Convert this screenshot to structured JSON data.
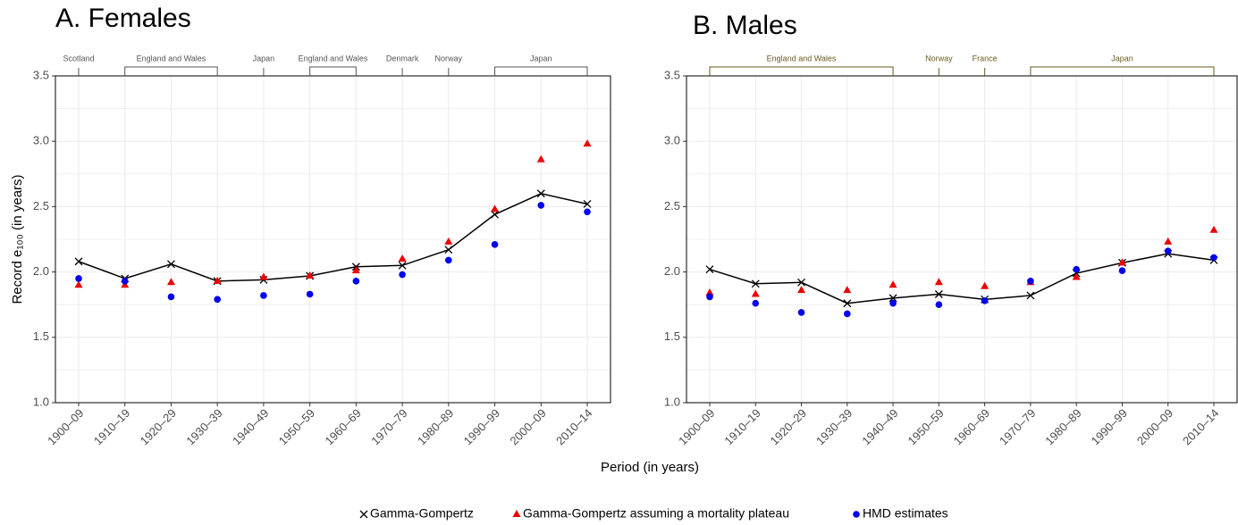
{
  "chart_data": [
    {
      "type": "line",
      "title": "A. Females",
      "y_label": "Record e₁₀₀ (in years)",
      "x_label": "Period (in years)",
      "categories": [
        "1900–09",
        "1910–19",
        "1920–29",
        "1930–39",
        "1940–49",
        "1950–59",
        "1960–69",
        "1970–79",
        "1980–89",
        "1990–99",
        "2000–09",
        "2010–14"
      ],
      "series": [
        {
          "name": "Gamma-Gompertz",
          "color": "#000000",
          "marker": "cross",
          "line": true,
          "values": [
            2.08,
            1.95,
            2.06,
            1.93,
            1.94,
            1.97,
            2.04,
            2.05,
            2.17,
            2.44,
            2.6,
            2.52
          ]
        },
        {
          "name": "Gamma-Gompertz assuming a mortality plateau",
          "color": "#ee0000",
          "marker": "triangle",
          "line": false,
          "values": [
            1.9,
            1.9,
            1.92,
            1.93,
            1.96,
            1.97,
            2.01,
            2.1,
            2.23,
            2.48,
            2.86,
            2.98
          ]
        },
        {
          "name": "HMD estimates",
          "color": "#0000ee",
          "marker": "circle",
          "line": false,
          "values": [
            1.95,
            1.93,
            1.81,
            1.79,
            1.82,
            1.83,
            1.93,
            1.98,
            2.09,
            2.21,
            2.51,
            2.46
          ]
        }
      ],
      "ylim": [
        1,
        3.5
      ],
      "yticks": [
        {
          "value": 1,
          "label": "1.0"
        },
        1.5,
        {
          "value": 2,
          "label": "2.0"
        },
        2.5,
        {
          "value": 3,
          "label": "3.0"
        },
        3.5
      ],
      "grid": true,
      "minor_grid": true,
      "annotation_color": "#555555",
      "annotations": [
        {
          "label": "Scotland",
          "from": "1900–09",
          "to": "1900–09"
        },
        {
          "label": "England and Wales",
          "from": "1910–19",
          "to": "1930–39"
        },
        {
          "label": "Japan",
          "from": "1940–49",
          "to": "1940–49"
        },
        {
          "label": "England and Wales",
          "from": "1950–59",
          "to": "1960–69"
        },
        {
          "label": "Denmark",
          "from": "1970–79",
          "to": "1970–79"
        },
        {
          "label": "Norway",
          "from": "1980–89",
          "to": "1980–89"
        },
        {
          "label": "Japan",
          "from": "1990–99",
          "to": "2010–14"
        }
      ]
    },
    {
      "type": "line",
      "title": "B. Males",
      "categories": [
        "1900–09",
        "1910–19",
        "1920–29",
        "1930–39",
        "1940–49",
        "1950–59",
        "1960–69",
        "1970–79",
        "1980–89",
        "1990–99",
        "2000–09",
        "2010–14"
      ],
      "series": [
        {
          "name": "Gamma-Gompertz",
          "color": "#000000",
          "marker": "cross",
          "line": true,
          "values": [
            2.02,
            1.91,
            1.92,
            1.76,
            1.8,
            1.83,
            1.79,
            1.82,
            1.99,
            2.07,
            2.14,
            2.09
          ]
        },
        {
          "name": "Gamma-Gompertz assuming a mortality plateau",
          "color": "#ee0000",
          "marker": "triangle",
          "line": false,
          "values": [
            1.84,
            1.83,
            1.86,
            1.86,
            1.9,
            1.92,
            1.89,
            1.92,
            1.96,
            2.07,
            2.23,
            2.32
          ]
        },
        {
          "name": "HMD estimates",
          "color": "#0000ee",
          "marker": "circle",
          "line": false,
          "values": [
            1.81,
            1.76,
            1.69,
            1.68,
            1.76,
            1.75,
            1.78,
            1.93,
            2.02,
            2.01,
            2.16,
            2.11
          ]
        }
      ],
      "ylim": [
        1,
        3.5
      ],
      "yticks": [
        {
          "value": 1,
          "label": "1.0"
        },
        1.5,
        {
          "value": 2,
          "label": "2.0"
        },
        2.5,
        {
          "value": 3,
          "label": "3.0"
        },
        3.5
      ],
      "grid": true,
      "minor_grid": true,
      "annotation_color": "#6b5a1e",
      "annotations": [
        {
          "label": "England and Wales",
          "from": "1900–09",
          "to": "1940–49"
        },
        {
          "label": "Norway",
          "from": "1950–59",
          "to": "1950–59"
        },
        {
          "label": "France",
          "from": "1960–69",
          "to": "1960–69"
        },
        {
          "label": "Japan",
          "from": "1970–79",
          "to": "2010–14"
        }
      ]
    }
  ]
}
